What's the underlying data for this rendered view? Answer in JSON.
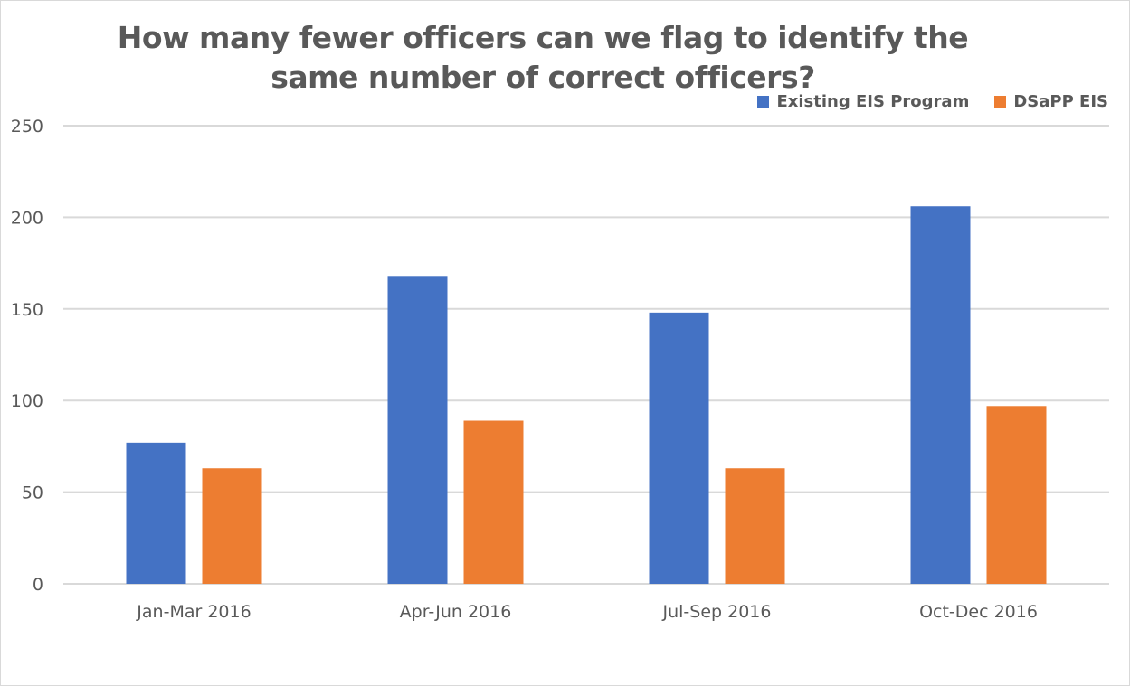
{
  "chart_data": {
    "type": "bar",
    "title": "How many fewer officers can we flag to identify the same number of correct officers?",
    "categories": [
      "Jan-Mar 2016",
      "Apr-Jun 2016",
      "Jul-Sep 2016",
      "Oct-Dec 2016"
    ],
    "series": [
      {
        "name": "Existing EIS Program",
        "color": "#4472c4",
        "values": [
          77,
          168,
          148,
          206
        ]
      },
      {
        "name": "DSaPP EIS",
        "color": "#ed7d31",
        "values": [
          63,
          89,
          63,
          97
        ]
      }
    ],
    "yticks": [
      0,
      50,
      100,
      150,
      200,
      250
    ],
    "ylim": [
      0,
      250
    ],
    "grid": true,
    "legend_position": "top-right",
    "xlabel": "",
    "ylabel": ""
  }
}
